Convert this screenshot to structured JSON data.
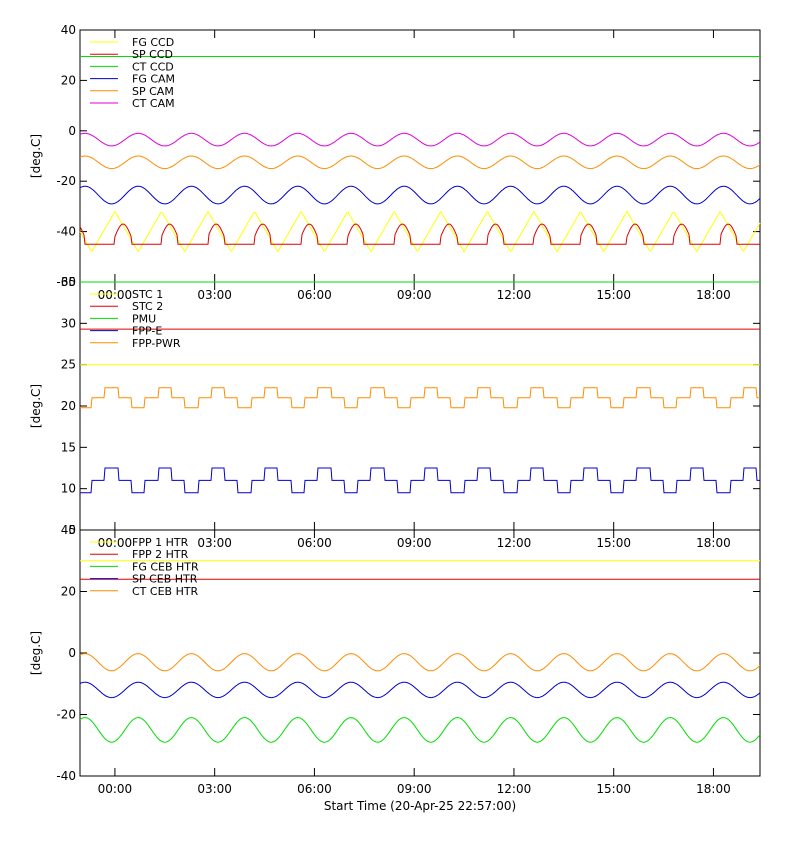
{
  "xlabel": "Start Time (20-Apr-25 22:57:00)",
  "time_ticks": [
    "00:00",
    "03:00",
    "06:00",
    "09:00",
    "12:00",
    "15:00",
    "18:00"
  ],
  "time_tick_hours": [
    0,
    3,
    6,
    9,
    12,
    15,
    18
  ],
  "time_range_hours": [
    -1.05,
    19.4
  ],
  "chart_data": [
    {
      "type": "line",
      "ylabel": "[deg.C]",
      "ylim": [
        -60,
        40
      ],
      "yticks": [
        -60,
        -40,
        -20,
        0,
        20,
        40
      ],
      "grid": false,
      "legend": "top-left",
      "series": [
        {
          "name": "FG CCD",
          "color": "#ffff00",
          "period_h": 1.4,
          "phase_h": 0.7,
          "x": [
            -1,
            19.4
          ],
          "y": [
            -40,
            -40
          ],
          "amplitude": 8,
          "pattern": "triangle"
        },
        {
          "name": "SP CCD",
          "color": "#dd0000",
          "period_h": 1.4,
          "phase_h": 0.0,
          "x": [
            -1,
            19.4
          ],
          "y": [
            -42,
            -42
          ],
          "amplitude": 5,
          "pattern": "pulse"
        },
        {
          "name": "CT CCD",
          "color": "#00dd00",
          "period_h": 1.4,
          "phase_h": 0.0,
          "x": [
            -1,
            19.4
          ],
          "y": [
            29.5,
            29.5
          ],
          "amplitude": 0,
          "pattern": "flat"
        },
        {
          "name": "FG CAM",
          "color": "#0000cc",
          "period_h": 1.6,
          "phase_h": 0.3,
          "x": [
            -1,
            19.4
          ],
          "y": [
            -25.5,
            -25.5
          ],
          "amplitude": 3.5,
          "pattern": "sine"
        },
        {
          "name": "SP CAM",
          "color": "#ff8c00",
          "period_h": 1.6,
          "phase_h": 0.3,
          "x": [
            -1,
            19.4
          ],
          "y": [
            -12.5,
            -12.5
          ],
          "amplitude": 2.5,
          "pattern": "sine"
        },
        {
          "name": "CT CAM",
          "color": "#dd00dd",
          "period_h": 1.6,
          "phase_h": 0.3,
          "x": [
            -1,
            19.4
          ],
          "y": [
            -3.5,
            -3.5
          ],
          "amplitude": 2.5,
          "pattern": "sine"
        }
      ]
    },
    {
      "type": "line",
      "ylabel": "[deg.C]",
      "ylim": [
        5,
        35
      ],
      "yticks": [
        5,
        10,
        15,
        20,
        25,
        30,
        35
      ],
      "grid": false,
      "legend": "top-left",
      "series": [
        {
          "name": "STC 1",
          "color": "#ffff00",
          "period_h": 1.6,
          "phase_h": 0.0,
          "x": [
            -1,
            19.4
          ],
          "y": [
            25,
            25
          ],
          "amplitude": 0.3,
          "pattern": "flat"
        },
        {
          "name": "STC 2",
          "color": "#dd0000",
          "period_h": 1.6,
          "phase_h": 0.0,
          "x": [
            -1,
            19.4
          ],
          "y": [
            29.3,
            29.3
          ],
          "amplitude": 0.3,
          "pattern": "flat"
        },
        {
          "name": "PMU",
          "color": "#00dd00",
          "period_h": 1.6,
          "phase_h": 0.0,
          "x": [
            -1,
            19.4
          ],
          "y": [
            35,
            35
          ],
          "amplitude": 0,
          "pattern": "flat"
        },
        {
          "name": "FPP-E",
          "color": "#0000cc",
          "period_h": 1.6,
          "phase_h": 0.5,
          "x": [
            -1,
            19.4
          ],
          "y": [
            11,
            11
          ],
          "amplitude": 1.5,
          "pattern": "step"
        },
        {
          "name": "FPP-PWR",
          "color": "#ff8c00",
          "period_h": 1.6,
          "phase_h": 0.5,
          "x": [
            -1,
            19.4
          ],
          "y": [
            21,
            21
          ],
          "amplitude": 1.2,
          "pattern": "step"
        }
      ]
    },
    {
      "type": "line",
      "ylabel": "[deg.C]",
      "ylim": [
        -40,
        40
      ],
      "yticks": [
        -40,
        -20,
        0,
        20,
        40
      ],
      "grid": false,
      "legend": "top-left",
      "series": [
        {
          "name": "FPP 1 HTR",
          "color": "#ffff00",
          "period_h": 1.6,
          "phase_h": 0.0,
          "x": [
            -1,
            19.4
          ],
          "y": [
            30,
            30
          ],
          "amplitude": 0,
          "pattern": "flat"
        },
        {
          "name": "FPP 2 HTR",
          "color": "#dd0000",
          "period_h": 1.6,
          "phase_h": 0.0,
          "x": [
            -1,
            19.4
          ],
          "y": [
            24,
            24
          ],
          "amplitude": 0,
          "pattern": "flat"
        },
        {
          "name": "FG CEB HTR",
          "color": "#00dd00",
          "period_h": 1.6,
          "phase_h": 0.3,
          "x": [
            -1,
            19.4
          ],
          "y": [
            -25,
            -25
          ],
          "amplitude": 4,
          "pattern": "sine"
        },
        {
          "name": "SP CEB HTR",
          "color": "#0000cc",
          "period_h": 1.6,
          "phase_h": 0.3,
          "x": [
            -1,
            19.4
          ],
          "y": [
            -12,
            -12
          ],
          "amplitude": 2.5,
          "pattern": "sine"
        },
        {
          "name": "CT CEB HTR",
          "color": "#ff8c00",
          "period_h": 1.6,
          "phase_h": 0.3,
          "x": [
            -1,
            19.4
          ],
          "y": [
            -3,
            -3
          ],
          "amplitude": 2.8,
          "pattern": "sine"
        }
      ]
    }
  ]
}
